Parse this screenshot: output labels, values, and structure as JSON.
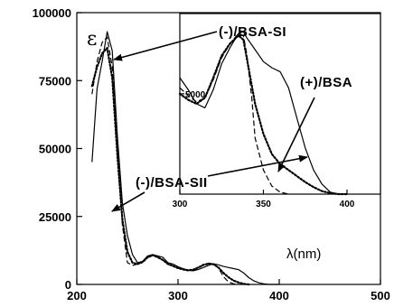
{
  "chart_data": [
    {
      "type": "line",
      "role": "main",
      "ylabel": "ε",
      "xunit_label": "λ(nm)",
      "xlim": [
        200,
        500
      ],
      "ylim": [
        0,
        100000
      ],
      "x_ticks": [
        200,
        300,
        400,
        500
      ],
      "x_tick_labels": [
        "200",
        "300",
        "400",
        "500"
      ],
      "y_ticks": [
        0,
        25000,
        50000,
        75000,
        100000
      ],
      "y_tick_labels": [
        "0",
        "25000",
        "50000",
        "75000",
        "100000"
      ],
      "grid": false,
      "series": [
        {
          "name": "(+)/BSA",
          "style": "solid",
          "x": [
            215,
            220,
            225,
            230,
            235,
            240,
            245,
            250,
            255,
            260,
            265,
            270,
            275,
            280,
            285,
            290,
            295,
            300,
            305,
            310,
            315,
            320,
            325,
            330,
            335,
            340,
            345,
            350,
            355,
            360,
            365,
            370,
            375,
            380,
            385,
            390,
            400
          ],
          "y": [
            45000,
            72000,
            82000,
            93000,
            86000,
            55000,
            30000,
            18000,
            11000,
            8000,
            8500,
            10500,
            11000,
            10500,
            10000,
            8000,
            7500,
            6500,
            5800,
            5200,
            5000,
            5500,
            6200,
            7000,
            7600,
            7200,
            6600,
            6200,
            5800,
            5400,
            4200,
            2500,
            1300,
            600,
            200,
            0,
            0
          ]
        },
        {
          "name": "(-)/BSA-SI",
          "style": "dotted",
          "x": [
            215,
            220,
            225,
            230,
            235,
            240,
            245,
            250,
            255,
            260,
            265,
            270,
            275,
            280,
            285,
            290,
            295,
            300,
            305,
            310,
            315,
            320,
            325,
            330,
            335,
            340,
            345,
            350,
            355,
            360,
            365,
            370
          ],
          "y": [
            73000,
            80000,
            85000,
            87000,
            76000,
            48000,
            24000,
            12000,
            8000,
            7500,
            8200,
            10000,
            10800,
            10000,
            9000,
            7500,
            6800,
            6000,
            5500,
            5200,
            5400,
            6200,
            7200,
            7600,
            7400,
            6200,
            4200,
            2600,
            1400,
            700,
            200,
            0
          ]
        },
        {
          "name": "(-)/BSA-SII",
          "style": "dashed",
          "x": [
            215,
            220,
            225,
            230,
            235,
            240,
            245,
            250,
            255,
            260,
            265,
            270,
            275,
            280,
            285,
            290,
            295,
            300,
            305,
            310,
            315,
            320,
            325,
            330,
            335,
            340,
            345,
            350,
            355,
            360
          ],
          "y": [
            70000,
            82000,
            89000,
            91000,
            80000,
            50000,
            22000,
            8000,
            7000,
            7500,
            8500,
            10000,
            10500,
            10000,
            9000,
            7500,
            6800,
            6000,
            5500,
            5000,
            5200,
            6000,
            7000,
            7800,
            7600,
            6000,
            2800,
            900,
            200,
            0
          ]
        }
      ],
      "annotations": [
        "(-)/BSA-SI",
        "(-)/BSA-SII",
        "(+)/BSA"
      ]
    },
    {
      "type": "line",
      "role": "inset",
      "xlim": [
        300,
        420
      ],
      "ylim": [
        0,
        9000
      ],
      "x_ticks": [
        300,
        350,
        400
      ],
      "x_tick_labels": [
        "300",
        "350",
        "400"
      ],
      "y_ticks": [
        5000
      ],
      "y_tick_labels": [
        "5000"
      ],
      "series": [
        {
          "name": "(+)/BSA",
          "style": "solid",
          "x": [
            300,
            305,
            310,
            315,
            320,
            325,
            330,
            335,
            338,
            340,
            345,
            350,
            355,
            360,
            365,
            370,
            375,
            380,
            385,
            390,
            395,
            400
          ],
          "y": [
            5800,
            5200,
            4500,
            4300,
            5200,
            6500,
            7300,
            8000,
            8100,
            7800,
            7200,
            6600,
            6300,
            6100,
            5300,
            3800,
            2300,
            1200,
            500,
            100,
            0,
            0
          ]
        },
        {
          "name": "(-)/BSA-SI",
          "style": "dotted",
          "x": [
            300,
            305,
            310,
            315,
            320,
            325,
            330,
            335,
            338,
            340,
            345,
            350,
            355,
            360,
            365,
            370,
            375,
            380,
            385,
            390,
            395,
            400
          ],
          "y": [
            5000,
            4700,
            4500,
            4800,
            5800,
            6900,
            7500,
            7900,
            7700,
            6800,
            4500,
            3000,
            2000,
            1500,
            1200,
            900,
            600,
            350,
            150,
            50,
            0,
            0
          ]
        },
        {
          "name": "(-)/BSA-SII",
          "style": "dashed",
          "x": [
            300,
            305,
            310,
            315,
            320,
            325,
            330,
            335,
            338,
            340,
            343,
            345,
            350,
            355,
            360,
            365
          ],
          "y": [
            5300,
            4900,
            4600,
            4800,
            5700,
            6800,
            7500,
            8000,
            7900,
            7000,
            4800,
            2800,
            1200,
            400,
            100,
            0
          ]
        }
      ]
    }
  ]
}
